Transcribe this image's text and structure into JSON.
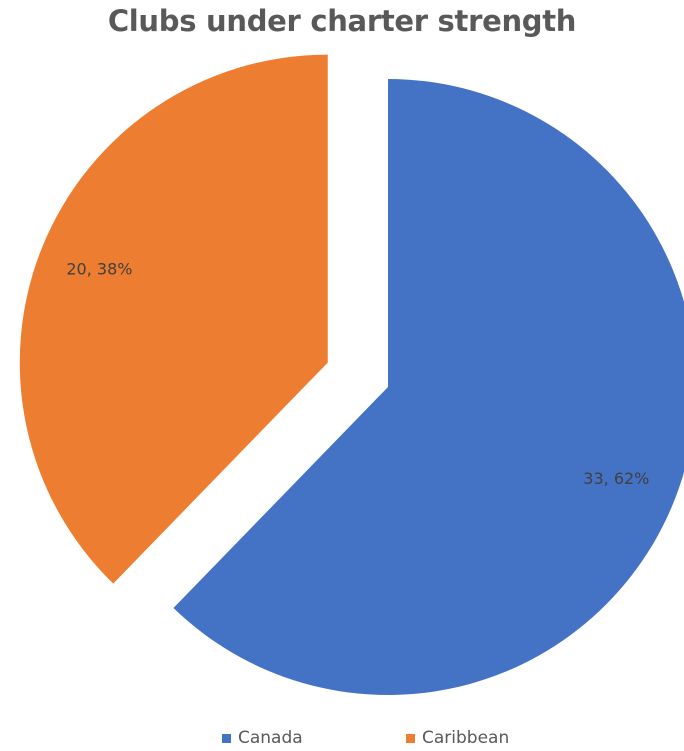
{
  "chart_data": {
    "type": "pie",
    "title": "Clubs under charter strength",
    "slices": [
      {
        "label": "Canada",
        "value": 33,
        "percent": "62%",
        "data_label": "33, 62%",
        "color": "#4472C4",
        "exploded": false
      },
      {
        "label": "Caribbean",
        "value": 20,
        "percent": "38%",
        "data_label": "20, 38%",
        "color": "#ED7D31",
        "exploded": true
      }
    ],
    "legend_position": "bottom"
  }
}
